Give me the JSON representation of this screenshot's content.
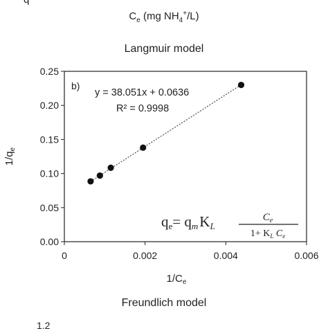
{
  "header": {
    "cut_letter": "q",
    "prev_xlabel_main": "C",
    "prev_xlabel_sub": "e",
    "prev_xlabel_unit_before": " (mg NH",
    "prev_xlabel_unit_sub": "4",
    "prev_xlabel_unit_sup": "+",
    "prev_xlabel_unit_after": "/L)"
  },
  "footer": {
    "next_title": "Freundlich model",
    "next_cut_tick": "1.2"
  },
  "chart_data": {
    "type": "scatter",
    "title": "Langmuir model",
    "panel_label": "b)",
    "xlabel": "1/C",
    "xlabel_sub": "e",
    "ylabel": "1/q",
    "ylabel_sub": "e",
    "xlim": [
      0,
      0.006
    ],
    "ylim": [
      0,
      0.25
    ],
    "xticks": [
      0,
      0.002,
      0.004,
      0.006
    ],
    "xtick_labels": [
      "0",
      "0.002",
      "0.004",
      "0.006"
    ],
    "yticks": [
      0,
      0.05,
      0.1,
      0.15,
      0.2,
      0.25
    ],
    "ytick_labels": [
      "0.00",
      "0.05",
      "0.10",
      "0.15",
      "0.20",
      "0.25"
    ],
    "grid": false,
    "points": [
      {
        "x": 0.00065,
        "y": 0.0885
      },
      {
        "x": 0.00088,
        "y": 0.097
      },
      {
        "x": 0.00115,
        "y": 0.1085
      },
      {
        "x": 0.00195,
        "y": 0.138
      },
      {
        "x": 0.00438,
        "y": 0.23
      }
    ],
    "trendline": {
      "slope": 38.051,
      "intercept": 0.0636,
      "x_range": [
        0.00065,
        0.00438
      ]
    },
    "equation_text": "y = 38.051x + 0.0636",
    "r2_text": "R² = 0.9998",
    "formula": {
      "lhs": "q",
      "lhs_sub": "e",
      "eq": "= q",
      "eq_sub": "m",
      "kl": "K",
      "kl_sub": "L",
      "num": "C",
      "num_sub": "e",
      "den_a": "1+ K",
      "den_a_sub": "L",
      "den_b": " C",
      "den_b_sub": "e"
    },
    "colors": {
      "marker": "#111111",
      "trendline": "#555555",
      "axis": "#222222"
    }
  }
}
